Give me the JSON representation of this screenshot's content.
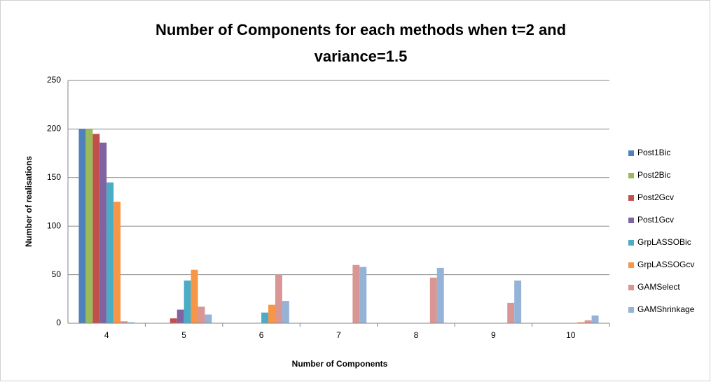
{
  "chart_data": {
    "type": "bar",
    "title": "Number of Components for each methods when t=2 and variance=1.5",
    "x_label": "Number of Components",
    "y_label": "Number of realisations",
    "categories": [
      "4",
      "5",
      "6",
      "7",
      "8",
      "9",
      "10"
    ],
    "series": [
      {
        "name": "Post1Bic",
        "color": "#4f81bd",
        "values": [
          200,
          0,
          0,
          0,
          0,
          0,
          0
        ]
      },
      {
        "name": "Post2Bic",
        "color": "#9bbb59",
        "values": [
          200,
          0,
          0,
          0,
          0,
          0,
          0
        ]
      },
      {
        "name": "Post2Gcv",
        "color": "#c0504d",
        "values": [
          195,
          5,
          0,
          0,
          0,
          0,
          0
        ]
      },
      {
        "name": "Post1Gcv",
        "color": "#8064a2",
        "values": [
          186,
          14,
          0,
          0,
          0,
          0,
          0
        ]
      },
      {
        "name": "GrpLASSOBic",
        "color": "#4bacc6",
        "values": [
          145,
          44,
          11,
          0,
          0,
          0,
          0
        ]
      },
      {
        "name": "GrpLASSOGcv",
        "color": "#f79646",
        "values": [
          125,
          55,
          19,
          0,
          0,
          0,
          1
        ]
      },
      {
        "name": "GAMSelect",
        "color": "#d99694",
        "values": [
          2,
          17,
          50,
          60,
          47,
          21,
          3
        ]
      },
      {
        "name": "GAMShrinkage",
        "color": "#95b3d7",
        "values": [
          1,
          9,
          23,
          58,
          57,
          44,
          8
        ]
      }
    ],
    "ylim": [
      0,
      250
    ],
    "yticks": [
      0,
      50,
      100,
      150,
      200,
      250
    ],
    "grid": true,
    "legend": "right"
  }
}
